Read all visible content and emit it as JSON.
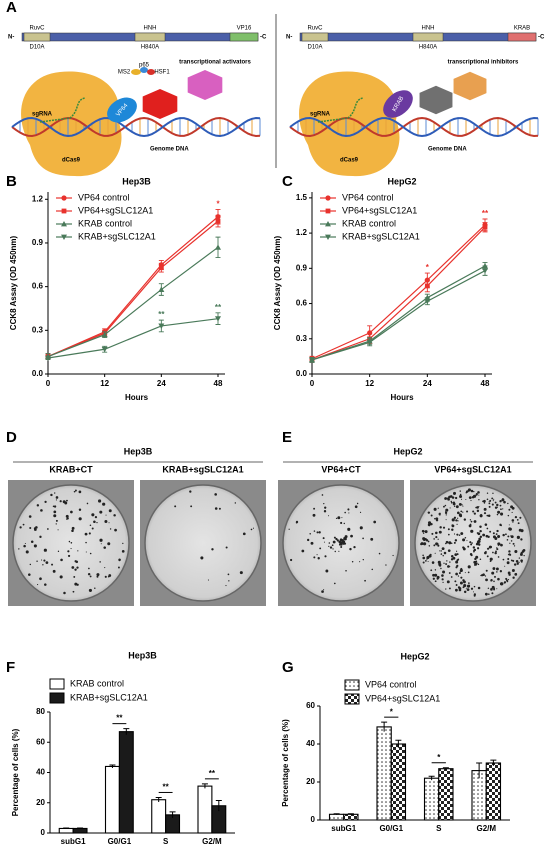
{
  "panel_labels": [
    "A",
    "B",
    "C",
    "D",
    "E",
    "F",
    "G"
  ],
  "diagram": {
    "left": {
      "n_term": "N-",
      "domains": [
        "RuvC",
        "HNH",
        "VP16"
      ],
      "c_term": "-C",
      "mutations": [
        "D10A",
        "H840A"
      ],
      "effector_labels": [
        "MS2",
        "p65",
        "HSF1",
        "VP64"
      ],
      "effector_text": "transcriptional activators",
      "sgrna": "sgRNA",
      "dna": "Genome DNA",
      "protein": "dCas9"
    },
    "right": {
      "n_term": "N-",
      "domains": [
        "RuvC",
        "HNH",
        "KRAB"
      ],
      "c_term": "-C",
      "mutations": [
        "D10A",
        "H840A"
      ],
      "effector_labels": [
        "KRAB"
      ],
      "effector_text": "transcriptional inhibitors",
      "sgrna": "sgRNA",
      "dna": "Genome DNA",
      "protein": "dCas9"
    }
  },
  "colony_assays": [
    {
      "title": "Hep3B",
      "plates": [
        "KRAB+CT",
        "KRAB+sgSLC12A1"
      ]
    },
    {
      "title": "HepG2",
      "plates": [
        "VP64+CT",
        "VP64+sgSLC12A1"
      ]
    }
  ],
  "chart_data": [
    {
      "type": "line",
      "title": "Hep3B",
      "x_label": "Hours",
      "y_label": "CCK8 Assay (OD 450nm)",
      "categories": [
        "0",
        "12",
        "24",
        "48"
      ],
      "ylim": [
        0,
        1.25
      ],
      "yticks": [
        {
          "value": 0,
          "label": "0.0"
        },
        0.3,
        0.6,
        0.9,
        1.2
      ],
      "series": [
        {
          "name": "VP64 control",
          "color": "#e8322d",
          "marker": "circle",
          "values": [
            0.12,
            0.29,
            0.75,
            1.08
          ],
          "errors": [
            0.02,
            0.02,
            0.03,
            0.05
          ],
          "annotations": [
            null,
            null,
            null,
            "*"
          ]
        },
        {
          "name": "VP64+sgSLC12A1",
          "color": "#e8322d",
          "marker": "square",
          "values": [
            0.12,
            0.28,
            0.73,
            1.05
          ],
          "errors": [
            0.02,
            0.02,
            0.03,
            0.04
          ],
          "annotations": [
            null,
            null,
            null,
            null
          ]
        },
        {
          "name": "KRAB control",
          "color": "#4a7a5a",
          "marker": "triangle",
          "values": [
            0.12,
            0.27,
            0.58,
            0.87
          ],
          "errors": [
            0.02,
            0.02,
            0.04,
            0.07
          ],
          "annotations": [
            null,
            null,
            null,
            null
          ]
        },
        {
          "name": "KRAB+sgSLC12A1",
          "color": "#4a7a5a",
          "marker": "triangle-down",
          "values": [
            0.11,
            0.17,
            0.33,
            0.38
          ],
          "errors": [
            0.01,
            0.02,
            0.04,
            0.04
          ],
          "annotations": [
            null,
            null,
            "**",
            "**"
          ]
        }
      ]
    },
    {
      "type": "line",
      "title": "HepG2",
      "x_label": "Hours",
      "y_label": "CCK8 Assay (OD 450nm)",
      "categories": [
        "0",
        "12",
        "24",
        "48"
      ],
      "ylim": [
        0,
        1.55
      ],
      "yticks": [
        {
          "value": 0,
          "label": "0.0"
        },
        0.3,
        0.6,
        0.9,
        1.2,
        1.5
      ],
      "series": [
        {
          "name": "VP64 control",
          "color": "#e8322d",
          "marker": "circle",
          "values": [
            0.13,
            0.35,
            0.8,
            1.27
          ],
          "errors": [
            0.02,
            0.06,
            0.06,
            0.05
          ],
          "annotations": [
            null,
            null,
            "*",
            "**"
          ]
        },
        {
          "name": "VP64+sgSLC12A1",
          "color": "#e8322d",
          "marker": "square",
          "values": [
            0.12,
            0.3,
            0.75,
            1.25
          ],
          "errors": [
            0.02,
            0.04,
            0.05,
            0.04
          ],
          "annotations": [
            null,
            null,
            null,
            null
          ]
        },
        {
          "name": "KRAB control",
          "color": "#4a7a5a",
          "marker": "triangle",
          "values": [
            0.12,
            0.28,
            0.65,
            0.92
          ],
          "errors": [
            0.02,
            0.03,
            0.03,
            0.03
          ],
          "annotations": [
            null,
            null,
            null,
            null
          ]
        },
        {
          "name": "KRAB+sgSLC12A1",
          "color": "#4a7a5a",
          "marker": "triangle-down",
          "values": [
            0.12,
            0.27,
            0.62,
            0.88
          ],
          "errors": [
            0.02,
            0.03,
            0.03,
            0.04
          ],
          "annotations": [
            null,
            null,
            null,
            null
          ]
        }
      ]
    },
    {
      "type": "bar",
      "title": "Hep3B",
      "y_label": "Percentage of cells (%)",
      "categories": [
        "subG1",
        "G0/G1",
        "S",
        "G2/M"
      ],
      "ylim": [
        0,
        80
      ],
      "yticks": [
        0,
        20,
        40,
        60,
        80
      ],
      "annotations": [
        null,
        "**",
        "**",
        "**"
      ],
      "series": [
        {
          "name": "KRAB control",
          "color": "#ffffff",
          "values": [
            3,
            44,
            22,
            31
          ],
          "errors": [
            0.3,
            1,
            1.5,
            1.5
          ]
        },
        {
          "name": "KRAB+sgSLC12A1",
          "color": "#1a1a1a",
          "values": [
            3,
            67,
            12,
            18
          ],
          "errors": [
            0.3,
            2,
            2,
            3.5
          ]
        }
      ]
    },
    {
      "type": "bar",
      "title": "HepG2",
      "y_label": "Percentage of cells (%)",
      "categories": [
        "subG1",
        "G0/G1",
        "S",
        "G2/M"
      ],
      "ylim": [
        0,
        60
      ],
      "yticks": [
        0,
        20,
        40,
        60
      ],
      "annotations": [
        null,
        "*",
        "*",
        null
      ],
      "series": [
        {
          "name": "VP64 control",
          "color": "#ffffff",
          "pattern": "dots",
          "values": [
            3,
            49,
            22,
            26
          ],
          "errors": [
            0.3,
            2.5,
            1,
            4
          ]
        },
        {
          "name": "VP64+sgSLC12A1",
          "color": "#ffffff",
          "pattern": "checker",
          "values": [
            3,
            40,
            27,
            30
          ],
          "errors": [
            0.3,
            2,
            0.5,
            1.5
          ]
        }
      ]
    }
  ]
}
